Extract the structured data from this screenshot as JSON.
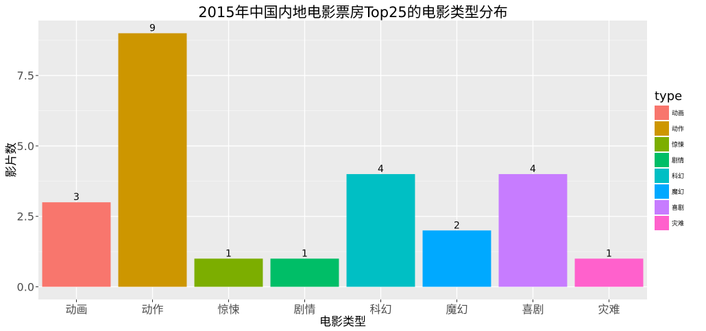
{
  "chart_data": {
    "type": "bar",
    "title": "2015年中国内地电影票房Top25的电影类型分布",
    "xlabel": "电影类型",
    "ylabel": "影片数",
    "categories": [
      "动画",
      "动作",
      "惊悚",
      "剧情",
      "科幻",
      "魔幻",
      "喜剧",
      "灾难"
    ],
    "values": [
      3,
      9,
      1,
      1,
      4,
      2,
      4,
      1
    ],
    "data_labels": [
      "3",
      "9",
      "1",
      "1",
      "4",
      "2",
      "4",
      "1"
    ],
    "colors": [
      "#F8766D",
      "#CD9600",
      "#7CAE00",
      "#00BE67",
      "#00BFC4",
      "#00A9FF",
      "#C77CFF",
      "#FF61CC"
    ],
    "ylim": [
      -0.45,
      9.45
    ],
    "yticks": [
      0,
      2.5,
      5,
      7.5
    ],
    "ytick_labels": [
      "0.0",
      "2.5",
      "5.0",
      "7.5"
    ],
    "grid": true,
    "legend": {
      "title": "type",
      "position": "right",
      "items": [
        "动画",
        "动作",
        "惊悚",
        "剧情",
        "科幻",
        "魔幻",
        "喜剧",
        "灾难"
      ]
    }
  }
}
